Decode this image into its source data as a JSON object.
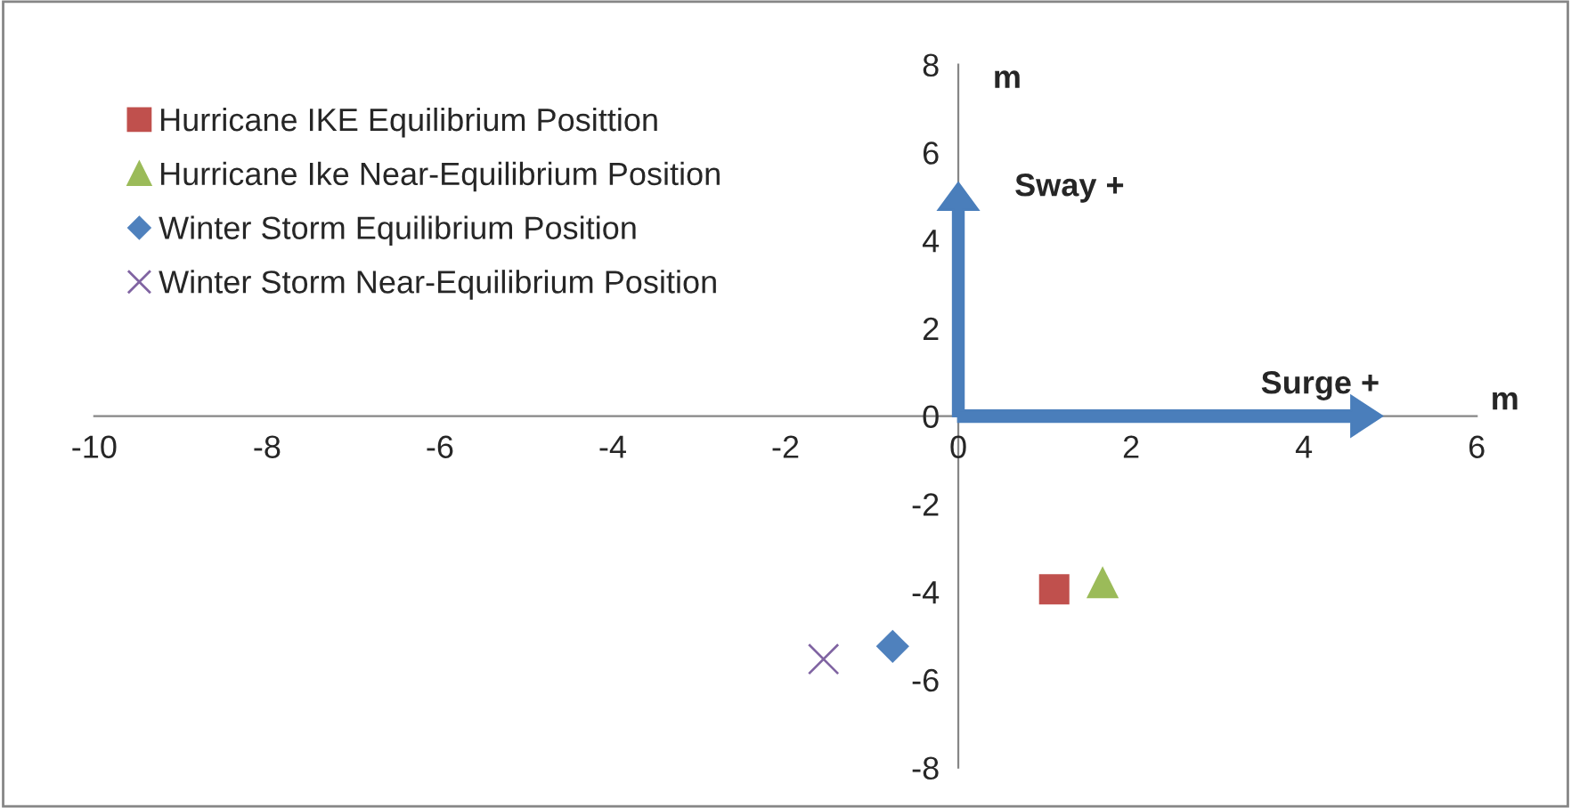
{
  "chart_data": {
    "type": "scatter",
    "xlabel": "m",
    "ylabel": "m",
    "xlim": [
      -10,
      6
    ],
    "xticks": [
      -10,
      -8,
      -6,
      -4,
      -2,
      0,
      2,
      4,
      6
    ],
    "ylim": [
      -8,
      8
    ],
    "yticks": [
      -8,
      -6,
      -4,
      -2,
      0,
      2,
      4,
      6,
      8
    ],
    "grid": false,
    "legend": "top left",
    "annotations": [
      "Sway +",
      "Surge +"
    ],
    "series": [
      {
        "name": "Hurricane IKE Equilibrium Posittion",
        "color": "#c0504d",
        "marker": "square",
        "x": [
          1.11
        ],
        "values": [
          -3.94
        ]
      },
      {
        "name": "Hurricane Ike Near-Equilibrium Position",
        "color": "#9bbb59",
        "marker": "triangle",
        "x": [
          1.67
        ],
        "values": [
          -3.78
        ]
      },
      {
        "name": "Winter Storm Equilibrium Position",
        "color": "#4f81bd",
        "marker": "diamond",
        "x": [
          -0.76
        ],
        "values": [
          -5.24
        ]
      },
      {
        "name": "Winter Storm Near-Equilibrium Position",
        "color": "#8064a2",
        "marker": "cross",
        "x": [
          -1.56
        ],
        "values": [
          -5.53
        ]
      }
    ]
  }
}
